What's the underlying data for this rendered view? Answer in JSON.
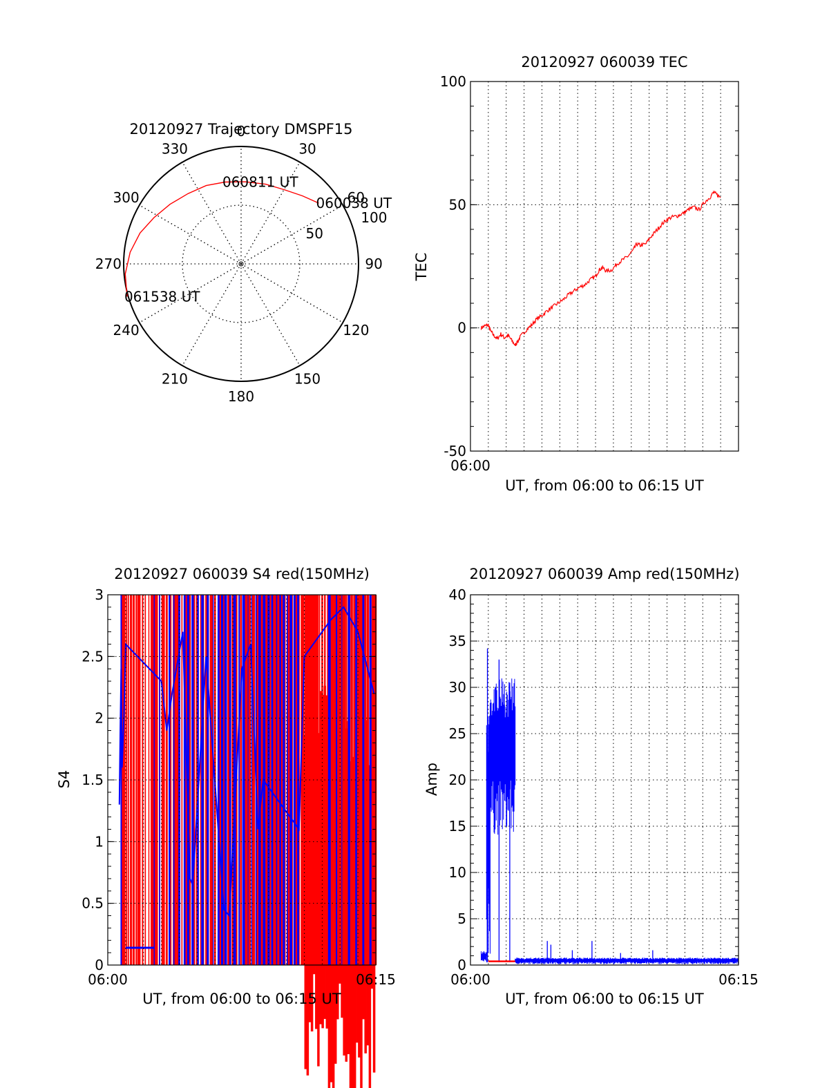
{
  "figure": {
    "background": "#ffffff",
    "colors": {
      "red": "#ff0000",
      "blue": "#0000ff",
      "axis": "#000000",
      "grid": "#000000"
    }
  },
  "chart_data": [
    {
      "id": "trajectory",
      "type": "polar",
      "title": "20120927 Trajectory DMSPF15",
      "angle_labels": [
        "0",
        "30",
        "60",
        "90",
        "120",
        "150",
        "180",
        "210",
        "240",
        "270",
        "300",
        "330"
      ],
      "angle_values": [
        0,
        30,
        60,
        90,
        120,
        150,
        180,
        210,
        240,
        270,
        300,
        330
      ],
      "radial_labels": [
        "50",
        "100"
      ],
      "radial_values": [
        50,
        100
      ],
      "grid": true,
      "series": [
        {
          "color": "#ff0000",
          "points": [
            {
              "az": 52,
              "zen": 84
            },
            {
              "az": 42,
              "zen": 78
            },
            {
              "az": 30,
              "zen": 73
            },
            {
              "az": 17,
              "zen": 71
            },
            {
              "az": 3,
              "zen": 70
            },
            {
              "az": -11,
              "zen": 71
            },
            {
              "az": -24,
              "zen": 73
            },
            {
              "az": -37,
              "zen": 75
            },
            {
              "az": -50,
              "zen": 79
            },
            {
              "az": -62,
              "zen": 84
            },
            {
              "az": -73,
              "zen": 90
            },
            {
              "az": -84,
              "zen": 95
            },
            {
              "az": -95,
              "zen": 99
            },
            {
              "az": -106,
              "zen": 101
            }
          ]
        }
      ],
      "annotations": [
        {
          "text": "060038 UT",
          "az": 52,
          "zen": 84
        },
        {
          "text": "060811 UT",
          "az": -11,
          "zen": 71
        },
        {
          "text": "061538 UT",
          "az": -106,
          "zen": 101
        }
      ]
    },
    {
      "id": "tec",
      "type": "line",
      "title": "20120927 060039 TEC",
      "xlabel": "UT, from 06:00 to 06:15 UT",
      "ylabel": "TEC",
      "x_unit": "minutes after 06:00 UT",
      "xlim": [
        0,
        15
      ],
      "ylim": [
        -50,
        100
      ],
      "yticks": [
        -50,
        0,
        50,
        100
      ],
      "xtick_labels": [
        "06:00"
      ],
      "grid": true,
      "series": [
        {
          "color": "#ff0000",
          "points": [
            [
              0.6,
              0.0
            ],
            [
              0.8,
              0.8
            ],
            [
              1.0,
              1.2
            ],
            [
              1.1,
              -1.0
            ],
            [
              1.3,
              -3.0
            ],
            [
              1.5,
              -4.5
            ],
            [
              1.7,
              -2.5
            ],
            [
              1.9,
              -4.0
            ],
            [
              2.1,
              -3.0
            ],
            [
              2.3,
              -5.0
            ],
            [
              2.5,
              -7.0
            ],
            [
              2.6,
              -6.0
            ],
            [
              2.8,
              -3.5
            ],
            [
              3.1,
              -1.0
            ],
            [
              3.4,
              1.0
            ],
            [
              3.7,
              3.5
            ],
            [
              4.0,
              5.0
            ],
            [
              4.3,
              7.0
            ],
            [
              4.6,
              8.5
            ],
            [
              4.9,
              10.0
            ],
            [
              5.2,
              11.5
            ],
            [
              5.5,
              13.5
            ],
            [
              5.8,
              15.0
            ],
            [
              6.1,
              16.5
            ],
            [
              6.4,
              17.5
            ],
            [
              6.7,
              19.5
            ],
            [
              7.0,
              21.0
            ],
            [
              7.2,
              23.5
            ],
            [
              7.4,
              24.5
            ],
            [
              7.6,
              23.0
            ],
            [
              7.9,
              23.5
            ],
            [
              8.2,
              26.0
            ],
            [
              8.5,
              27.5
            ],
            [
              8.8,
              29.0
            ],
            [
              9.1,
              31.5
            ],
            [
              9.3,
              34.0
            ],
            [
              9.5,
              33.5
            ],
            [
              9.8,
              34.0
            ],
            [
              10.1,
              37.0
            ],
            [
              10.4,
              39.5
            ],
            [
              10.7,
              42.0
            ],
            [
              11.0,
              44.0
            ],
            [
              11.3,
              45.0
            ],
            [
              11.6,
              45.5
            ],
            [
              11.9,
              46.5
            ],
            [
              12.2,
              48.0
            ],
            [
              12.5,
              49.0
            ],
            [
              12.8,
              48.0
            ],
            [
              13.1,
              51.0
            ],
            [
              13.4,
              53.0
            ],
            [
              13.6,
              55.0
            ],
            [
              13.8,
              54.0
            ],
            [
              14.0,
              53.0
            ]
          ]
        }
      ]
    },
    {
      "id": "s4",
      "type": "line",
      "title": "20120927 060039 S4 red(150MHz)",
      "xlabel": "UT, from 06:00 to 06:15 UT",
      "ylabel": "S4",
      "x_unit": "minutes after 06:00 UT",
      "xlim": [
        0,
        15
      ],
      "ylim": [
        0,
        3
      ],
      "yticks": [
        0,
        0.5,
        1,
        1.5,
        2,
        2.5,
        3
      ],
      "ytick_labels": [
        "0",
        "0.5",
        "1",
        "1.5",
        "2",
        "2.5",
        "3"
      ],
      "xtick_labels": [
        "06:00",
        "06:15"
      ],
      "grid": true,
      "series": [
        {
          "color": "#ff0000",
          "style": "dense spikes",
          "spike_x": [
            0.85,
            0.95,
            1.05,
            1.15,
            1.3,
            1.45,
            1.6,
            1.75,
            1.95,
            2.1,
            2.3,
            2.5,
            2.7,
            2.9,
            3.1,
            3.3,
            3.5,
            3.75,
            3.95,
            4.15,
            4.4,
            4.6,
            4.8,
            5.0,
            5.2,
            5.35,
            5.55,
            5.8,
            6.0,
            6.25,
            6.5,
            6.75,
            7.0,
            7.2,
            7.45,
            7.7,
            7.9,
            8.15,
            8.4,
            8.6,
            8.85,
            9.05,
            9.3,
            9.5,
            9.7,
            9.9,
            10.1,
            10.3,
            10.5,
            10.7,
            10.9,
            11.1,
            11.25,
            11.4,
            11.55,
            11.7,
            11.85,
            12.0,
            12.15,
            12.3,
            12.45,
            12.6,
            12.75,
            12.9,
            13.05,
            13.2,
            13.35,
            13.5,
            13.65,
            13.8,
            13.95,
            14.1,
            14.25,
            14.4,
            14.55,
            14.7,
            14.85,
            14.95
          ],
          "spike_top": 3
        },
        {
          "color": "#0000ff",
          "style": "dense spikes",
          "spike_x": [
            0.75,
            2.6,
            2.9,
            3.45,
            3.7,
            4.0,
            4.3,
            4.5,
            4.75,
            5.05,
            5.3,
            5.6,
            5.9,
            6.2,
            6.4,
            6.6,
            6.85,
            7.1,
            7.35,
            7.6,
            7.85,
            8.05,
            8.3,
            8.5,
            8.75,
            9.0,
            9.2,
            9.45,
            9.65,
            9.85,
            10.05,
            10.25,
            10.45,
            10.65,
            12.4,
            12.8,
            13.1,
            13.5,
            13.9,
            14.3,
            14.7
          ],
          "spike_top": 3,
          "points": [
            [
              0.65,
              1.3
            ],
            [
              0.7,
              1.9
            ],
            [
              0.75,
              2.4
            ],
            [
              0.8,
              1.6
            ],
            [
              0.9,
              2.0
            ],
            [
              1.0,
              2.6
            ],
            [
              3.0,
              2.3
            ],
            [
              3.3,
              1.9
            ],
            [
              3.6,
              2.2
            ],
            [
              4.2,
              2.7
            ],
            [
              4.6,
              0.7
            ],
            [
              4.75,
              0.65
            ],
            [
              5.5,
              2.5
            ],
            [
              6.5,
              0.45
            ],
            [
              6.8,
              0.4
            ],
            [
              7.5,
              2.4
            ],
            [
              8.0,
              2.6
            ],
            [
              8.4,
              1.1
            ],
            [
              8.7,
              1.5
            ],
            [
              10.7,
              1.1
            ],
            [
              11.0,
              2.5
            ],
            [
              12.5,
              2.8
            ],
            [
              13.2,
              2.9
            ],
            [
              14.0,
              2.7
            ],
            [
              14.9,
              2.2
            ]
          ],
          "segments": [
            {
              "x": [
                1.0,
                2.6
              ],
              "y": 0.14
            }
          ]
        }
      ]
    },
    {
      "id": "amp",
      "type": "line",
      "title": "20120927 060039 Amp red(150MHz)",
      "xlabel": "UT, from 06:00 to 06:15 UT",
      "ylabel": "Amp",
      "x_unit": "minutes after 06:00 UT",
      "xlim": [
        0,
        15
      ],
      "ylim": [
        0,
        40
      ],
      "yticks": [
        0,
        5,
        10,
        15,
        20,
        25,
        30,
        35,
        40
      ],
      "xtick_labels": [
        "06:00",
        "06:15"
      ],
      "grid": true,
      "series": [
        {
          "color": "#0000ff",
          "style": "noisy envelope",
          "envelope": [
            {
              "x": [
                0.6,
                0.9
              ],
              "low": 0.2,
              "high": 1.5
            },
            {
              "x": [
                0.9,
                1.1
              ],
              "low": 0.5,
              "high": 29
            },
            {
              "x": [
                1.1,
                2.5
              ],
              "low": 14,
              "high": 31
            },
            {
              "x": [
                2.5,
                15.0
              ],
              "low": 0.1,
              "high": 0.8
            }
          ],
          "peaks": [
            {
              "x": 0.95,
              "y": 34.2
            },
            {
              "x": 1.6,
              "y": 33.0
            },
            {
              "x": 2.2,
              "y": 30.5
            },
            {
              "x": 4.3,
              "y": 2.6
            },
            {
              "x": 4.5,
              "y": 2.2
            },
            {
              "x": 5.7,
              "y": 1.6
            },
            {
              "x": 6.8,
              "y": 2.6
            },
            {
              "x": 8.4,
              "y": 1.3
            },
            {
              "x": 10.2,
              "y": 1.6
            }
          ]
        },
        {
          "color": "#ff0000",
          "style": "baseline",
          "x": [
            1.0,
            2.5
          ],
          "y": 0.4
        }
      ]
    }
  ]
}
